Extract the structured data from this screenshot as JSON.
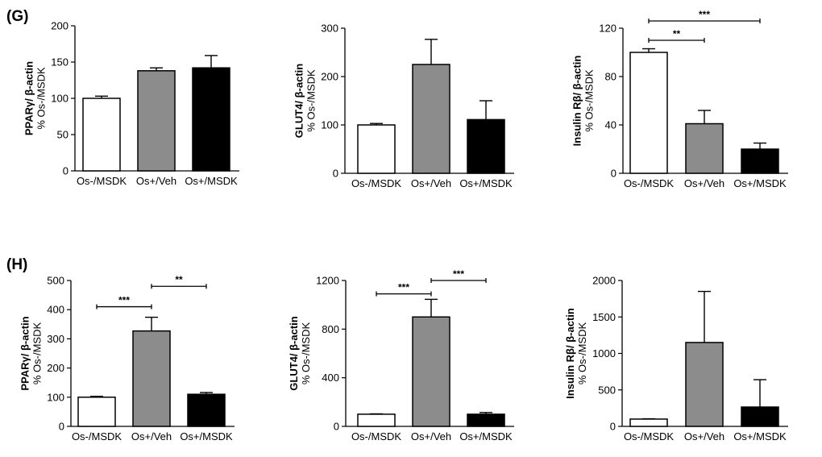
{
  "panels": [
    {
      "label": "(G)"
    },
    {
      "label": "(H)"
    }
  ],
  "colors": {
    "bar_fills": [
      "#ffffff",
      "#8c8c8c",
      "#000000"
    ],
    "stroke": "#000000"
  },
  "chart_data": [
    {
      "type": "bar",
      "panel": "(G)",
      "ylabel_main": "PPARγ/ β-actin",
      "ylabel_sub": "% Os-/MSDK",
      "categories": [
        "Os-/MSDK",
        "Os+/Veh",
        "Os+/MSDK"
      ],
      "values": [
        100,
        138,
        142
      ],
      "errors": [
        3,
        4,
        17
      ],
      "ylim": [
        0,
        200
      ],
      "yticks": [
        "0",
        "50",
        "100",
        "150",
        "200"
      ],
      "significance": []
    },
    {
      "type": "bar",
      "panel": "(G)",
      "ylabel_main": "GLUT4/ β-actin",
      "ylabel_sub": "% Os-/MSDK",
      "categories": [
        "Os-/MSDK",
        "Os+/Veh",
        "Os+/MSDK"
      ],
      "values": [
        100,
        225,
        111
      ],
      "errors": [
        3,
        52,
        39
      ],
      "ylim": [
        0,
        300
      ],
      "yticks": [
        "0",
        "100",
        "200",
        "300"
      ],
      "significance": []
    },
    {
      "type": "bar",
      "panel": "(G)",
      "ylabel_main": "Insulin Rβ/ β-actin",
      "ylabel_sub": "% Os-/MSDK",
      "categories": [
        "Os-/MSDK",
        "Os+/Veh",
        "Os+/MSDK"
      ],
      "values": [
        100,
        41,
        20
      ],
      "errors": [
        3,
        11,
        5
      ],
      "ylim": [
        0,
        120
      ],
      "yticks": [
        "0",
        "40",
        "80",
        "120"
      ],
      "significance": [
        {
          "from": 0,
          "to": 1,
          "label": "**",
          "y": 110
        },
        {
          "from": 0,
          "to": 2,
          "label": "***",
          "y": 126
        }
      ]
    },
    {
      "type": "bar",
      "panel": "(H)",
      "ylabel_main": "PPARγ/ β-actin",
      "ylabel_sub": "% Os-/MSDK",
      "categories": [
        "Os-/MSDK",
        "Os+/Veh",
        "Os+/MSDK"
      ],
      "values": [
        100,
        327,
        110
      ],
      "errors": [
        3,
        47,
        6
      ],
      "ylim": [
        0,
        500
      ],
      "yticks": [
        "0",
        "100",
        "200",
        "300",
        "400",
        "500"
      ],
      "significance": [
        {
          "from": 0,
          "to": 1,
          "label": "***",
          "y": 410
        },
        {
          "from": 1,
          "to": 2,
          "label": "**",
          "y": 480
        }
      ]
    },
    {
      "type": "bar",
      "panel": "(H)",
      "ylabel_main": "GLUT4/ β-actin",
      "ylabel_sub": "% Os-/MSDK",
      "categories": [
        "Os-/MSDK",
        "Os+/Veh",
        "Os+/MSDK"
      ],
      "values": [
        100,
        900,
        100
      ],
      "errors": [
        3,
        145,
        14
      ],
      "ylim": [
        0,
        1200
      ],
      "yticks": [
        "0",
        "400",
        "800",
        "1200"
      ],
      "significance": [
        {
          "from": 0,
          "to": 1,
          "label": "***",
          "y": 1090
        },
        {
          "from": 1,
          "to": 2,
          "label": "***",
          "y": 1200
        }
      ]
    },
    {
      "type": "bar",
      "panel": "(H)",
      "ylabel_main": "Insulin Rβ/ β-actin",
      "ylabel_sub": "% Os-/MSDK",
      "categories": [
        "Os-/MSDK",
        "Os+/Veh",
        "Os+/MSDK"
      ],
      "values": [
        100,
        1150,
        265
      ],
      "errors": [
        4,
        700,
        375
      ],
      "ylim": [
        0,
        2000
      ],
      "yticks": [
        "0",
        "500",
        "1000",
        "1500",
        "2000"
      ],
      "significance": []
    }
  ]
}
